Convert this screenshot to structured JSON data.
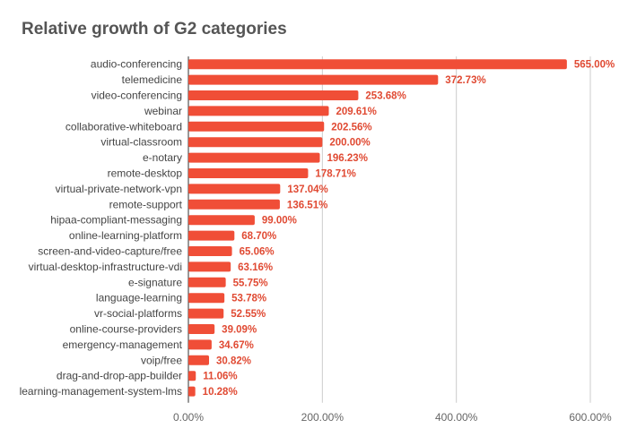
{
  "chart_data": {
    "type": "bar",
    "orientation": "horizontal",
    "title": "Relative growth of G2 categories",
    "xlabel": "",
    "ylabel": "",
    "categories": [
      "audio-conferencing",
      "telemedicine",
      "video-conferencing",
      "webinar",
      "collaborative-whiteboard",
      "virtual-classroom",
      "e-notary",
      "remote-desktop",
      "virtual-private-network-vpn",
      "remote-support",
      "hipaa-compliant-messaging",
      "online-learning-platform",
      "screen-and-video-capture/free",
      "virtual-desktop-infrastructure-vdi",
      "e-signature",
      "language-learning",
      "vr-social-platforms",
      "online-course-providers",
      "emergency-management",
      "voip/free",
      "drag-and-drop-app-builder",
      "learning-management-system-lms"
    ],
    "values": [
      565.0,
      372.73,
      253.68,
      209.61,
      202.56,
      200.0,
      196.23,
      178.71,
      137.04,
      136.51,
      99.0,
      68.7,
      65.06,
      63.16,
      55.75,
      53.78,
      52.55,
      39.09,
      34.67,
      30.82,
      11.06,
      10.28
    ],
    "value_labels": [
      "565.00%",
      "372.73%",
      "253.68%",
      "209.61%",
      "202.56%",
      "200.00%",
      "196.23%",
      "178.71%",
      "137.04%",
      "136.51%",
      "99.00%",
      "68.70%",
      "65.06%",
      "63.16%",
      "55.75%",
      "53.78%",
      "52.55%",
      "39.09%",
      "34.67%",
      "30.82%",
      "11.06%",
      "10.28%"
    ],
    "xlim": [
      0,
      600
    ],
    "x_ticks": [
      0,
      200,
      400,
      600
    ],
    "x_tick_labels": [
      "0.00%",
      "200.00%",
      "400.00%",
      "600.00%"
    ],
    "grid": true,
    "legend": "none",
    "colors": {
      "bar": "#f04e37",
      "value_label": "#e04a33",
      "category_label": "#444444",
      "tick_label": "#666666",
      "grid": "#cccccc",
      "axis": "#333333"
    }
  }
}
